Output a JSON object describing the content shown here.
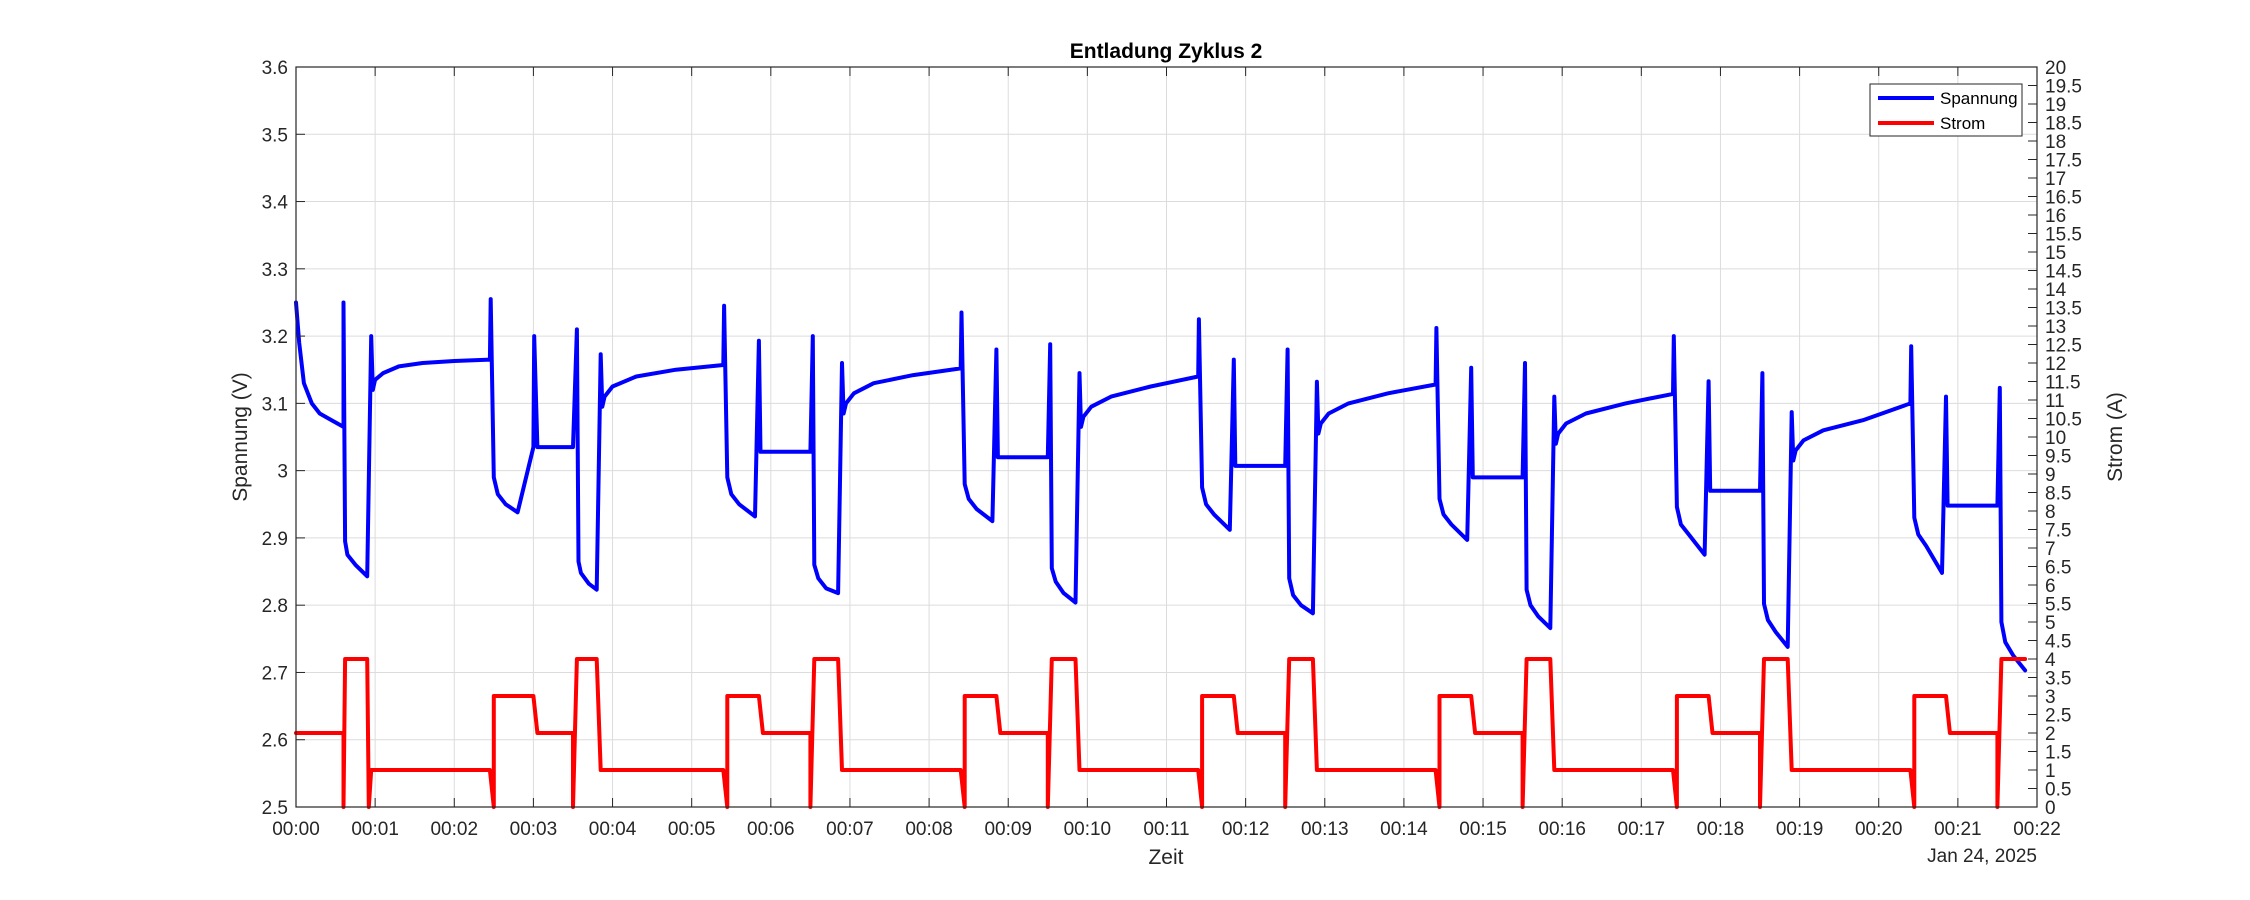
{
  "chart_data": {
    "type": "line",
    "title": "Entladung Zyklus 2",
    "xlabel": "Zeit",
    "x_secondary_label": "Jan 24, 2025",
    "ylabel_left": "Spannung (V)",
    "ylabel_right": "Strom (A)",
    "x_unit": "minutes",
    "xlim": [
      0,
      22
    ],
    "ylim_left": [
      2.5,
      3.6
    ],
    "ylim_right": [
      0,
      20
    ],
    "grid": true,
    "legend_position": "top-right",
    "x_ticks": [
      "00:00",
      "00:01",
      "00:02",
      "00:03",
      "00:04",
      "00:05",
      "00:06",
      "00:07",
      "00:08",
      "00:09",
      "00:10",
      "00:11",
      "00:12",
      "00:13",
      "00:14",
      "00:15",
      "00:16",
      "00:17",
      "00:18",
      "00:19",
      "00:20",
      "00:21",
      "00:22"
    ],
    "y_ticks_left": [
      "2.5",
      "2.6",
      "2.7",
      "2.8",
      "2.9",
      "3",
      "3.1",
      "3.2",
      "3.3",
      "3.4",
      "3.5",
      "3.6"
    ],
    "y_ticks_right": [
      "0",
      "0.5",
      "1",
      "1.5",
      "2",
      "2.5",
      "3",
      "3.5",
      "4",
      "4.5",
      "5",
      "5.5",
      "6",
      "6.5",
      "7",
      "7.5",
      "8",
      "8.5",
      "9",
      "9.5",
      "10",
      "10.5",
      "11",
      "11.5",
      "12",
      "12.5",
      "13",
      "13.5",
      "14",
      "14.5",
      "15",
      "15.5",
      "16",
      "16.5",
      "17",
      "17.5",
      "18",
      "18.5",
      "19",
      "19.5",
      "20"
    ],
    "colors": {
      "spannung": "#0000ff",
      "strom": "#ff0000",
      "grid": "#dcdcdc",
      "axis": "#262626"
    },
    "series": [
      {
        "name": "Spannung",
        "axis": "left",
        "color": "#0000ff",
        "x": [
          0,
          0.04,
          0.1,
          0.2,
          0.3,
          0.45,
          0.6,
          0.6,
          0.62,
          0.65,
          0.75,
          0.9,
          0.95,
          0.97,
          0.99,
          1.0,
          1.1,
          1.3,
          1.6,
          2.0,
          2.45,
          2.46,
          2.5,
          2.55,
          2.65,
          2.8,
          3.0,
          3.01,
          3.05,
          3.07,
          3.5,
          3.55,
          3.57,
          3.6,
          3.7,
          3.8,
          3.85,
          3.87,
          3.9,
          4.0,
          4.3,
          4.8,
          5.4,
          5.41,
          5.45,
          5.5,
          5.6,
          5.8,
          5.85,
          5.87,
          5.88,
          5.9,
          6.5,
          6.53,
          6.55,
          6.6,
          6.7,
          6.85,
          6.9,
          6.92,
          6.95,
          7.05,
          7.3,
          7.8,
          8.4,
          8.41,
          8.45,
          8.5,
          8.6,
          8.8,
          8.85,
          8.87,
          8.88,
          8.9,
          9.5,
          9.53,
          9.55,
          9.6,
          9.7,
          9.85,
          9.9,
          9.92,
          9.95,
          10.05,
          10.3,
          10.8,
          11.4,
          11.41,
          11.45,
          11.5,
          11.6,
          11.8,
          11.85,
          11.87,
          11.88,
          11.9,
          12.5,
          12.53,
          12.55,
          12.6,
          12.7,
          12.85,
          12.9,
          12.92,
          12.95,
          13.05,
          13.3,
          13.8,
          14.4,
          14.41,
          14.45,
          14.5,
          14.6,
          14.8,
          14.85,
          14.87,
          14.88,
          14.9,
          15.5,
          15.53,
          15.55,
          15.6,
          15.7,
          15.85,
          15.9,
          15.92,
          15.95,
          16.05,
          16.3,
          16.8,
          17.4,
          17.41,
          17.45,
          17.5,
          17.6,
          17.8,
          17.85,
          17.87,
          17.88,
          17.9,
          18.5,
          18.53,
          18.55,
          18.6,
          18.7,
          18.85,
          18.9,
          18.92,
          18.95,
          19.05,
          19.3,
          19.8,
          20.4,
          20.41,
          20.45,
          20.5,
          20.6,
          20.8,
          20.85,
          20.87,
          20.88,
          20.9,
          21.5,
          21.53,
          21.55,
          21.6,
          21.7,
          21.85
        ],
        "values": [
          3.25,
          3.19,
          3.13,
          3.1,
          3.085,
          3.075,
          3.065,
          3.25,
          2.895,
          2.875,
          2.86,
          2.843,
          3.2,
          3.12,
          3.13,
          3.135,
          3.145,
          3.155,
          3.16,
          3.163,
          3.165,
          3.255,
          2.99,
          2.965,
          2.95,
          2.938,
          3.035,
          3.2,
          3.035,
          3.035,
          3.035,
          3.21,
          2.865,
          2.848,
          2.832,
          2.823,
          3.173,
          3.095,
          3.11,
          3.125,
          3.14,
          3.15,
          3.157,
          3.245,
          2.99,
          2.965,
          2.95,
          2.932,
          3.193,
          3.028,
          3.028,
          3.028,
          3.028,
          3.2,
          2.86,
          2.84,
          2.825,
          2.818,
          3.16,
          3.085,
          3.1,
          3.115,
          3.13,
          3.142,
          3.152,
          3.235,
          2.98,
          2.958,
          2.943,
          2.925,
          3.18,
          3.02,
          3.02,
          3.02,
          3.02,
          3.188,
          2.855,
          2.835,
          2.818,
          2.804,
          3.145,
          3.065,
          3.08,
          3.095,
          3.11,
          3.125,
          3.14,
          3.225,
          2.975,
          2.95,
          2.935,
          2.912,
          3.165,
          3.007,
          3.007,
          3.007,
          3.007,
          3.18,
          2.84,
          2.815,
          2.8,
          2.788,
          3.132,
          3.055,
          3.07,
          3.085,
          3.1,
          3.115,
          3.128,
          3.212,
          2.958,
          2.935,
          2.92,
          2.897,
          3.153,
          2.99,
          2.99,
          2.99,
          2.99,
          3.16,
          2.823,
          2.8,
          2.783,
          2.766,
          3.11,
          3.04,
          3.055,
          3.07,
          3.085,
          3.1,
          3.114,
          3.2,
          2.946,
          2.92,
          2.905,
          2.875,
          3.133,
          2.97,
          2.97,
          2.97,
          2.97,
          3.145,
          2.802,
          2.778,
          2.76,
          2.738,
          3.087,
          3.015,
          3.03,
          3.045,
          3.06,
          3.075,
          3.1,
          3.185,
          2.93,
          2.905,
          2.888,
          2.848,
          3.11,
          2.948,
          2.948,
          2.948,
          2.948,
          3.123,
          2.775,
          2.745,
          2.725,
          2.703
        ]
      },
      {
        "name": "Strom",
        "axis": "right",
        "color": "#ff0000",
        "x": [
          0,
          0.6,
          0.6,
          0.62,
          0.63,
          0.9,
          0.92,
          0.95,
          2.45,
          2.5,
          2.5,
          3.0,
          3.05,
          3.5,
          3.5,
          3.55,
          3.8,
          3.85,
          5.4,
          5.45,
          5.45,
          5.85,
          5.9,
          6.5,
          6.5,
          6.55,
          6.85,
          6.9,
          8.4,
          8.45,
          8.45,
          8.85,
          8.9,
          9.5,
          9.5,
          9.55,
          9.85,
          9.9,
          11.4,
          11.45,
          11.45,
          11.85,
          11.9,
          12.5,
          12.5,
          12.55,
          12.85,
          12.9,
          14.4,
          14.45,
          14.45,
          14.85,
          14.9,
          15.5,
          15.5,
          15.55,
          15.85,
          15.9,
          17.4,
          17.45,
          17.45,
          17.85,
          17.9,
          18.5,
          18.5,
          18.55,
          18.85,
          18.9,
          20.4,
          20.45,
          20.45,
          20.85,
          20.9,
          21.5,
          21.5,
          21.55,
          21.85
        ],
        "values": [
          2,
          2,
          0,
          4,
          4,
          4,
          0,
          1,
          1,
          0,
          3,
          3,
          2,
          2,
          0,
          4,
          4,
          1,
          1,
          0,
          3,
          3,
          2,
          2,
          0,
          4,
          4,
          1,
          1,
          0,
          3,
          3,
          2,
          2,
          0,
          4,
          4,
          1,
          1,
          0,
          3,
          3,
          2,
          2,
          0,
          4,
          4,
          1,
          1,
          0,
          3,
          3,
          2,
          2,
          0,
          4,
          4,
          1,
          1,
          0,
          3,
          3,
          2,
          2,
          0,
          4,
          4,
          1,
          1,
          0,
          3,
          3,
          2,
          2,
          0,
          4,
          4
        ]
      }
    ]
  }
}
